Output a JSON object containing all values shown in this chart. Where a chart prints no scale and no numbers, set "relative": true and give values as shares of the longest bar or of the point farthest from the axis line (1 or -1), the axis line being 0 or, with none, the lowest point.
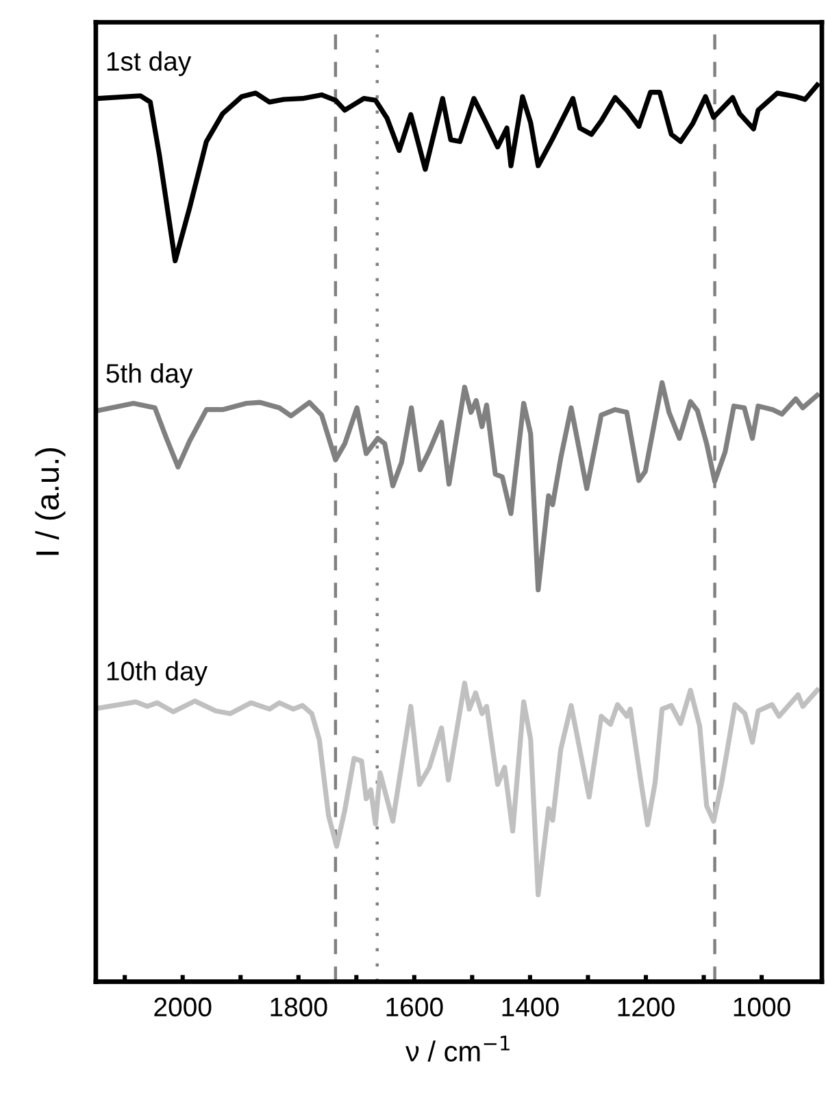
{
  "chart_data": {
    "type": "line",
    "relative": true,
    "xlabel": "ν / cm$^{−1}$",
    "ylabel": "I / (a.u.)",
    "tick_labels": "x",
    "grid": false,
    "legend": false,
    "marker": "none",
    "line_style": "solid",
    "xlim": [
      2150,
      896
    ],
    "xticks": [
      {
        "value": 2100,
        "label": null
      },
      2000,
      {
        "value": 1900,
        "label": null
      },
      1800,
      {
        "value": 1700,
        "label": null
      },
      1600,
      {
        "value": 1500,
        "label": null
      },
      1400,
      {
        "value": 1300,
        "label": null
      },
      1200,
      {
        "value": 1100,
        "label": null
      },
      1000
    ],
    "ref_lines": [
      {
        "axis": "x",
        "value": 1736,
        "label": null,
        "color": "#808080",
        "line_style": "dashed"
      },
      {
        "axis": "x",
        "value": 1664,
        "label": null,
        "color": "#808080",
        "line_style": "dotted"
      },
      {
        "axis": "x",
        "value": 1081,
        "label": null,
        "color": "#808080",
        "line_style": "dashed"
      }
    ],
    "series": [
      {
        "name": "1st day",
        "color": "#000000",
        "x": [
          2146,
          2073,
          2056,
          2040,
          2013,
          1988,
          1959,
          1931,
          1898,
          1874,
          1850,
          1825,
          1793,
          1760,
          1736,
          1720,
          1687,
          1667,
          1647,
          1626,
          1606,
          1581,
          1551,
          1537,
          1521,
          1497,
          1476,
          1456,
          1440,
          1433,
          1413,
          1399,
          1386,
          1362,
          1326,
          1314,
          1294,
          1277,
          1253,
          1233,
          1212,
          1192,
          1176,
          1156,
          1140,
          1119,
          1097,
          1083,
          1050,
          1038,
          1014,
          1006,
          973,
          941,
          925,
          904
        ],
        "values": [
          0.985,
          0.988,
          0.981,
          0.921,
          0.804,
          0.863,
          0.937,
          0.968,
          0.987,
          0.991,
          0.981,
          0.984,
          0.985,
          0.989,
          0.983,
          0.972,
          0.985,
          0.983,
          0.963,
          0.927,
          0.967,
          0.906,
          0.985,
          0.939,
          0.937,
          0.985,
          0.958,
          0.931,
          0.952,
          0.91,
          0.987,
          0.958,
          0.91,
          0.939,
          0.985,
          0.952,
          0.945,
          0.96,
          0.986,
          0.972,
          0.954,
          0.992,
          0.992,
          0.945,
          0.937,
          0.957,
          0.987,
          0.964,
          0.986,
          0.968,
          0.951,
          0.972,
          0.991,
          0.987,
          0.984,
          1.0
        ]
      },
      {
        "name": "5th day",
        "color": "#808080",
        "x": [
          2146,
          2085,
          2048,
          2028,
          2008,
          1988,
          1959,
          1931,
          1890,
          1866,
          1833,
          1813,
          1781,
          1760,
          1736,
          1720,
          1699,
          1683,
          1663,
          1651,
          1637,
          1622,
          1605,
          1590,
          1574,
          1553,
          1540,
          1513,
          1502,
          1493,
          1483,
          1475,
          1460,
          1448,
          1433,
          1411,
          1399,
          1386,
          1368,
          1361,
          1347,
          1329,
          1302,
          1277,
          1253,
          1233,
          1212,
          1201,
          1172,
          1160,
          1142,
          1123,
          1111,
          1095,
          1081,
          1063,
          1048,
          1030,
          1016,
          1006,
          981,
          965,
          941,
          929,
          904
        ],
        "values": [
          0.637,
          0.645,
          0.64,
          0.606,
          0.574,
          0.603,
          0.638,
          0.638,
          0.645,
          0.646,
          0.64,
          0.631,
          0.646,
          0.632,
          0.582,
          0.6,
          0.64,
          0.589,
          0.606,
          0.6,
          0.553,
          0.579,
          0.64,
          0.571,
          0.592,
          0.624,
          0.555,
          0.663,
          0.635,
          0.648,
          0.619,
          0.643,
          0.566,
          0.563,
          0.522,
          0.645,
          0.611,
          0.437,
          0.542,
          0.532,
          0.584,
          0.64,
          0.55,
          0.632,
          0.638,
          0.635,
          0.559,
          0.569,
          0.668,
          0.635,
          0.606,
          0.647,
          0.637,
          0.6,
          0.558,
          0.591,
          0.642,
          0.64,
          0.606,
          0.642,
          0.638,
          0.633,
          0.65,
          0.64,
          0.654
        ]
      },
      {
        "name": "10th day",
        "color": "#c0c0c0",
        "x": [
          2146,
          2081,
          2061,
          2044,
          2016,
          1979,
          1943,
          1918,
          1882,
          1850,
          1833,
          1809,
          1793,
          1777,
          1764,
          1748,
          1734,
          1720,
          1704,
          1691,
          1683,
          1675,
          1667,
          1659,
          1637,
          1606,
          1591,
          1574,
          1553,
          1541,
          1513,
          1505,
          1494,
          1483,
          1475,
          1456,
          1444,
          1430,
          1411,
          1399,
          1386,
          1368,
          1361,
          1347,
          1329,
          1298,
          1277,
          1261,
          1249,
          1233,
          1227,
          1209,
          1197,
          1184,
          1172,
          1156,
          1140,
          1123,
          1107,
          1095,
          1083,
          1069,
          1046,
          1029,
          1016,
          1006,
          982,
          970,
          937,
          929,
          904
        ],
        "values": [
          0.305,
          0.312,
          0.307,
          0.311,
          0.301,
          0.313,
          0.302,
          0.299,
          0.311,
          0.304,
          0.311,
          0.304,
          0.308,
          0.299,
          0.27,
          0.185,
          0.151,
          0.191,
          0.249,
          0.246,
          0.204,
          0.214,
          0.176,
          0.233,
          0.179,
          0.307,
          0.22,
          0.239,
          0.283,
          0.225,
          0.333,
          0.304,
          0.322,
          0.299,
          0.307,
          0.22,
          0.239,
          0.168,
          0.312,
          0.27,
          0.097,
          0.193,
          0.18,
          0.259,
          0.308,
          0.206,
          0.296,
          0.287,
          0.309,
          0.296,
          0.304,
          0.225,
          0.175,
          0.222,
          0.304,
          0.308,
          0.288,
          0.325,
          0.285,
          0.196,
          0.179,
          0.222,
          0.309,
          0.299,
          0.267,
          0.302,
          0.309,
          0.296,
          0.32,
          0.307,
          0.325
        ]
      }
    ]
  }
}
